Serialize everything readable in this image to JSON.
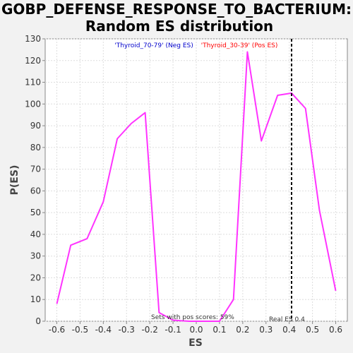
{
  "chart_data": {
    "type": "line",
    "title_line1": "GOBP_DEFENSE_RESPONSE_TO_BACTERIUM:",
    "title_line2": "Random ES distribution",
    "xlabel": "ES",
    "ylabel": "P(ES)",
    "xlim": [
      -0.65,
      0.65
    ],
    "ylim": [
      0,
      130
    ],
    "xticks": [
      "-0.6",
      "-0.5",
      "-0.4",
      "-0.3",
      "-0.2",
      "-0.1",
      "0.0",
      "0.1",
      "0.2",
      "0.3",
      "0.4",
      "0.5",
      "0.6"
    ],
    "xtick_values": [
      -0.6,
      -0.5,
      -0.4,
      -0.3,
      -0.2,
      -0.1,
      0.0,
      0.1,
      0.2,
      0.3,
      0.4,
      0.5,
      0.6
    ],
    "yticks": [
      "0",
      "10",
      "20",
      "30",
      "40",
      "50",
      "60",
      "70",
      "80",
      "90",
      "100",
      "110",
      "120",
      "130"
    ],
    "ytick_values": [
      0,
      10,
      20,
      30,
      40,
      50,
      60,
      70,
      80,
      90,
      100,
      110,
      120,
      130
    ],
    "grid": true,
    "series": [
      {
        "color": "#ff33ff",
        "x": [
          -0.6,
          -0.54,
          -0.47,
          -0.4,
          -0.34,
          -0.28,
          -0.22,
          -0.16,
          -0.1,
          -0.03,
          0.03,
          0.1,
          0.16,
          0.22,
          0.28,
          0.35,
          0.41,
          0.47,
          0.53,
          0.6
        ],
        "y": [
          8,
          35,
          38,
          55,
          84,
          91,
          96,
          4,
          0.5,
          0,
          0,
          0,
          10,
          124,
          83,
          104,
          105,
          98,
          51,
          14
        ]
      }
    ],
    "legend": [
      {
        "text": "'Thyroid_70-79' (Neg ES)",
        "color": "#0000cc"
      },
      {
        "text": "'Thyroid_30-39' (Pos ES)",
        "color": "#ff0000"
      }
    ],
    "legend_placement": "top-center",
    "real_es": 0.41,
    "annotations": {
      "pos_scores": "Sets with pos scores: 59%",
      "real_es": "Real ES 0.4"
    }
  }
}
